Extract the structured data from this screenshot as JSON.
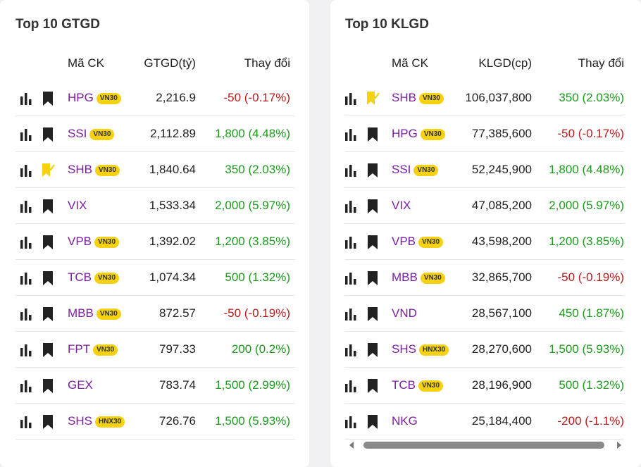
{
  "left": {
    "title": "Top 10 GTGD",
    "headers": {
      "symbol": "Mã CK",
      "value": "GTGD(tỷ)",
      "change": "Thay đổi"
    },
    "rows": [
      {
        "symbol": "HPG",
        "badge": "VN30",
        "value": "2,216.9",
        "change": "-50 (-0.17%)",
        "dir": "down",
        "bookmarked": false
      },
      {
        "symbol": "SSI",
        "badge": "VN30",
        "value": "2,112.89",
        "change": "1,800 (4.48%)",
        "dir": "up",
        "bookmarked": false
      },
      {
        "symbol": "SHB",
        "badge": "VN30",
        "value": "1,840.64",
        "change": "350 (2.03%)",
        "dir": "up",
        "bookmarked": true
      },
      {
        "symbol": "VIX",
        "badge": "",
        "value": "1,533.34",
        "change": "2,000 (5.97%)",
        "dir": "up",
        "bookmarked": false
      },
      {
        "symbol": "VPB",
        "badge": "VN30",
        "value": "1,392.02",
        "change": "1,200 (3.85%)",
        "dir": "up",
        "bookmarked": false
      },
      {
        "symbol": "TCB",
        "badge": "VN30",
        "value": "1,074.34",
        "change": "500 (1.32%)",
        "dir": "up",
        "bookmarked": false
      },
      {
        "symbol": "MBB",
        "badge": "VN30",
        "value": "872.57",
        "change": "-50 (-0.19%)",
        "dir": "down",
        "bookmarked": false
      },
      {
        "symbol": "FPT",
        "badge": "VN30",
        "value": "797.33",
        "change": "200 (0.2%)",
        "dir": "up",
        "bookmarked": false
      },
      {
        "symbol": "GEX",
        "badge": "",
        "value": "783.74",
        "change": "1,500 (2.99%)",
        "dir": "up",
        "bookmarked": false
      },
      {
        "symbol": "SHS",
        "badge": "HNX30",
        "value": "726.76",
        "change": "1,500 (5.93%)",
        "dir": "up",
        "bookmarked": false
      }
    ]
  },
  "right": {
    "title": "Top 10 KLGD",
    "headers": {
      "symbol": "Mã CK",
      "value": "KLGD(cp)",
      "change": "Thay đổi"
    },
    "rows": [
      {
        "symbol": "SHB",
        "badge": "VN30",
        "value": "106,037,800",
        "change": "350 (2.03%)",
        "dir": "up",
        "bookmarked": true
      },
      {
        "symbol": "HPG",
        "badge": "VN30",
        "value": "77,385,600",
        "change": "-50 (-0.17%)",
        "dir": "down",
        "bookmarked": false
      },
      {
        "symbol": "SSI",
        "badge": "VN30",
        "value": "52,245,900",
        "change": "1,800 (4.48%)",
        "dir": "up",
        "bookmarked": false
      },
      {
        "symbol": "VIX",
        "badge": "",
        "value": "47,085,200",
        "change": "2,000 (5.97%)",
        "dir": "up",
        "bookmarked": false
      },
      {
        "symbol": "VPB",
        "badge": "VN30",
        "value": "43,598,200",
        "change": "1,200 (3.85%)",
        "dir": "up",
        "bookmarked": false
      },
      {
        "symbol": "MBB",
        "badge": "VN30",
        "value": "32,865,700",
        "change": "-50 (-0.19%)",
        "dir": "down",
        "bookmarked": false
      },
      {
        "symbol": "VND",
        "badge": "",
        "value": "28,567,100",
        "change": "450 (1.87%)",
        "dir": "up",
        "bookmarked": false
      },
      {
        "symbol": "SHS",
        "badge": "HNX30",
        "value": "28,270,600",
        "change": "1,500 (5.93%)",
        "dir": "up",
        "bookmarked": false
      },
      {
        "symbol": "TCB",
        "badge": "VN30",
        "value": "28,196,900",
        "change": "500 (1.32%)",
        "dir": "up",
        "bookmarked": false
      },
      {
        "symbol": "NKG",
        "badge": "",
        "value": "25,184,400",
        "change": "-200 (-1.1%)",
        "dir": "down",
        "bookmarked": false
      }
    ]
  },
  "colors": {
    "up": "#1e9a1e",
    "down": "#b71c1c",
    "symbol": "#7b1fa2",
    "badge": "#f5d10f",
    "bookmarked": "#f5d10f"
  },
  "icons": {
    "chart": "bar-chart-icon",
    "bookmark": "bookmark-icon",
    "bookmarked": "bookmark-check-icon"
  }
}
